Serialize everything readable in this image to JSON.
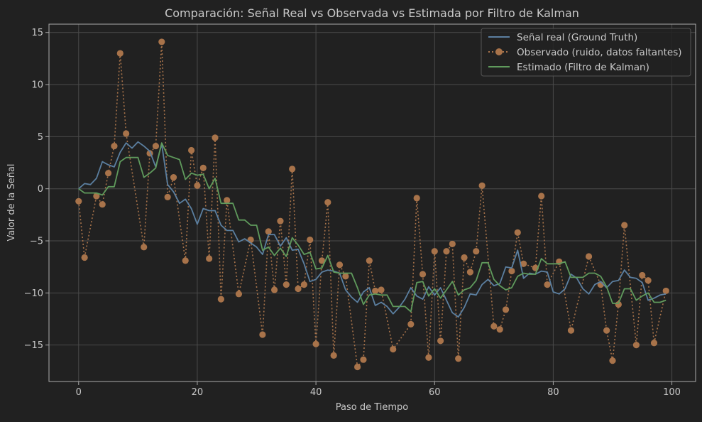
{
  "colors": {
    "background": "#212121",
    "axes_face": "#212121",
    "grid": "#4a4a4a",
    "spine": "#aaaaaa",
    "text": "#c8c8c8",
    "real": "#5b7fa0",
    "observed": "#a8734a",
    "kalman": "#5f9a5c"
  },
  "chart_data": {
    "type": "line",
    "title": "Comparación: Señal Real vs Observada vs Estimada por Filtro de Kalman",
    "xlabel": "Paso de Tiempo",
    "ylabel": "Valor de la Señal",
    "xlim": [
      -5,
      104
    ],
    "ylim": [
      -18.5,
      15.8
    ],
    "xticks": [
      0,
      20,
      40,
      60,
      80,
      100
    ],
    "yticks": [
      -15,
      -10,
      -5,
      0,
      5,
      10,
      15
    ],
    "xtick_labels": [
      "0",
      "20",
      "40",
      "60",
      "80",
      "100"
    ],
    "ytick_labels": [
      "−15",
      "−10",
      "−5",
      "0",
      "5",
      "10",
      "15"
    ],
    "grid": true,
    "legend_position": "top-right",
    "series": [
      {
        "name": "Señal real (Ground Truth)",
        "style": "solid",
        "x": [
          0,
          1,
          2,
          3,
          4,
          5,
          6,
          7,
          8,
          9,
          10,
          11,
          12,
          13,
          14,
          15,
          16,
          17,
          18,
          19,
          20,
          21,
          22,
          23,
          24,
          25,
          26,
          27,
          28,
          29,
          30,
          31,
          32,
          33,
          34,
          35,
          36,
          37,
          38,
          39,
          40,
          41,
          42,
          43,
          44,
          45,
          46,
          47,
          48,
          49,
          50,
          51,
          52,
          53,
          54,
          55,
          56,
          57,
          58,
          59,
          60,
          61,
          62,
          63,
          64,
          65,
          66,
          67,
          68,
          69,
          70,
          71,
          72,
          73,
          74,
          75,
          76,
          77,
          78,
          79,
          80,
          81,
          82,
          83,
          84,
          85,
          86,
          87,
          88,
          89,
          90,
          91,
          92,
          93,
          94,
          95,
          96,
          97,
          98,
          99
        ],
        "y": [
          0.0,
          0.5,
          0.4,
          1.0,
          2.6,
          2.3,
          2.1,
          3.5,
          4.4,
          3.9,
          4.5,
          4.1,
          3.6,
          2.1,
          4.3,
          0.4,
          -0.3,
          -1.4,
          -1.0,
          -1.9,
          -3.4,
          -1.9,
          -2.1,
          -2.1,
          -3.5,
          -4.0,
          -4.0,
          -5.1,
          -4.8,
          -5.2,
          -5.6,
          -6.3,
          -4.4,
          -4.4,
          -5.5,
          -4.7,
          -5.9,
          -5.8,
          -7.2,
          -8.9,
          -8.7,
          -8.0,
          -7.8,
          -7.9,
          -8.1,
          -9.7,
          -10.4,
          -10.9,
          -9.9,
          -9.5,
          -11.2,
          -10.9,
          -11.3,
          -12.0,
          -11.4,
          -10.6,
          -9.5,
          -10.3,
          -10.6,
          -9.4,
          -10.2,
          -9.5,
          -10.7,
          -11.9,
          -12.3,
          -11.4,
          -10.1,
          -10.2,
          -9.2,
          -8.7,
          -9.3,
          -9.1,
          -7.5,
          -7.6,
          -5.9,
          -8.6,
          -8.1,
          -8.2,
          -7.9,
          -8.0,
          -9.9,
          -10.1,
          -9.6,
          -8.2,
          -8.6,
          -9.6,
          -10.1,
          -9.2,
          -8.9,
          -9.5,
          -8.9,
          -8.8,
          -7.8,
          -8.5,
          -8.6,
          -9.0,
          -10.7,
          -10.5,
          -10.2,
          -10.1
        ]
      },
      {
        "name": "Observado (ruido, datos faltantes)",
        "style": "dotted-markers",
        "x": [
          0,
          1,
          3,
          4,
          5,
          6,
          7,
          8,
          11,
          12,
          13,
          14,
          15,
          16,
          18,
          19,
          20,
          21,
          22,
          23,
          24,
          25,
          27,
          29,
          31,
          32,
          33,
          34,
          35,
          36,
          37,
          38,
          39,
          40,
          41,
          42,
          43,
          44,
          45,
          47,
          48,
          49,
          50,
          51,
          53,
          56,
          57,
          58,
          59,
          60,
          61,
          62,
          63,
          64,
          65,
          66,
          67,
          68,
          70,
          71,
          72,
          73,
          74,
          75,
          77,
          78,
          79,
          81,
          83,
          86,
          88,
          89,
          90,
          91,
          92,
          94,
          95,
          96,
          97,
          99
        ],
        "y": [
          -1.2,
          -6.6,
          -0.7,
          -1.5,
          1.5,
          4.1,
          13.0,
          5.3,
          -5.6,
          3.4,
          4.1,
          14.1,
          -0.8,
          1.1,
          -6.9,
          3.7,
          0.3,
          2.0,
          -6.7,
          4.9,
          -10.6,
          -1.1,
          -10.1,
          -4.9,
          -14.0,
          -4.1,
          -9.7,
          -3.1,
          -9.2,
          1.9,
          -9.6,
          -9.2,
          -4.9,
          -14.9,
          -6.9,
          -1.3,
          -16.0,
          -7.3,
          -8.4,
          -17.1,
          -16.4,
          -6.9,
          -9.8,
          -9.7,
          -15.4,
          -13.0,
          -0.9,
          -8.2,
          -16.2,
          -6.0,
          -14.6,
          -6.0,
          -5.3,
          -16.3,
          -6.6,
          -8.0,
          -6.0,
          0.3,
          -13.2,
          -13.5,
          -11.6,
          -7.9,
          -4.2,
          -7.2,
          -7.6,
          -0.7,
          -9.2,
          -7.0,
          -13.6,
          -6.5,
          -9.2,
          -13.6,
          -16.5,
          -11.1,
          -3.5,
          -15.0,
          -8.3,
          -8.8,
          -14.8,
          -9.8
        ]
      },
      {
        "name": "Estimado (Filtro de Kalman)",
        "style": "solid",
        "x": [
          0,
          1,
          2,
          3,
          4,
          5,
          6,
          7,
          8,
          9,
          10,
          11,
          12,
          13,
          14,
          15,
          16,
          17,
          18,
          19,
          20,
          21,
          22,
          23,
          24,
          25,
          26,
          27,
          28,
          29,
          30,
          31,
          32,
          33,
          34,
          35,
          36,
          37,
          38,
          39,
          40,
          41,
          42,
          43,
          44,
          45,
          46,
          47,
          48,
          49,
          50,
          51,
          52,
          53,
          54,
          55,
          56,
          57,
          58,
          59,
          60,
          61,
          62,
          63,
          64,
          65,
          66,
          67,
          68,
          69,
          70,
          71,
          72,
          73,
          74,
          75,
          76,
          77,
          78,
          79,
          80,
          81,
          82,
          83,
          84,
          85,
          86,
          87,
          88,
          89,
          90,
          91,
          92,
          93,
          94,
          95,
          96,
          97,
          98,
          99
        ],
        "y": [
          0.0,
          -0.4,
          -0.4,
          -0.4,
          -0.6,
          0.2,
          0.2,
          2.6,
          3.0,
          3.0,
          3.0,
          1.1,
          1.5,
          2.0,
          4.4,
          3.2,
          3.0,
          2.8,
          0.9,
          1.5,
          1.3,
          1.4,
          0.0,
          1.0,
          -1.4,
          -1.4,
          -1.4,
          -3.0,
          -3.0,
          -3.5,
          -3.5,
          -5.9,
          -5.6,
          -6.4,
          -5.7,
          -6.5,
          -4.7,
          -5.4,
          -6.3,
          -6.1,
          -7.7,
          -7.6,
          -6.4,
          -8.0,
          -8.1,
          -8.1,
          -8.1,
          -9.5,
          -11.1,
          -10.2,
          -10.1,
          -10.2,
          -10.2,
          -11.3,
          -11.3,
          -11.3,
          -11.8,
          -9.0,
          -8.9,
          -10.3,
          -9.6,
          -10.5,
          -9.7,
          -8.9,
          -10.2,
          -9.7,
          -9.5,
          -8.8,
          -7.1,
          -7.1,
          -8.7,
          -9.3,
          -9.7,
          -9.5,
          -8.4,
          -8.1,
          -8.2,
          -8.2,
          -6.7,
          -7.2,
          -7.2,
          -7.2,
          -7.0,
          -8.5,
          -8.5,
          -8.5,
          -8.1,
          -8.1,
          -8.4,
          -9.4,
          -11.0,
          -11.0,
          -9.6,
          -9.6,
          -10.7,
          -10.3,
          -10.0,
          -10.9,
          -10.9,
          -10.7
        ]
      }
    ]
  }
}
